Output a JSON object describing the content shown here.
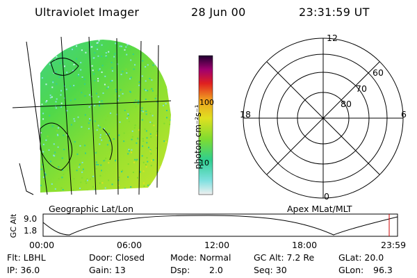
{
  "header": {
    "instrument": "Ultraviolet Imager",
    "date": "28 Jun 00",
    "time": "23:31:59 UT"
  },
  "colorbar": {
    "label": "photon cm⁻²s⁻¹",
    "tick_100": "100",
    "tick_10": "10"
  },
  "map_labels": {
    "left": "Geographic Lat/Lon",
    "right": "Apex MLat/MLT"
  },
  "polar": {
    "mlt_12": "12",
    "mlt_18": "18",
    "mlt_6": "6",
    "mlt_0": "0",
    "lat_60": "60",
    "lat_70": "70",
    "lat_80": "80"
  },
  "timeline": {
    "ylabel": "GC Alt",
    "ytick_top": "9.0",
    "ytick_bottom": "1.8",
    "xticks": [
      "00:00",
      "06:00",
      "12:00",
      "18:00",
      "23:59"
    ]
  },
  "footer": {
    "row1": {
      "flt": "Flt: LBHL",
      "door": "Door: Closed",
      "mode": "Mode: Normal",
      "gcalt": "GC Alt: 7.2 Re",
      "glat": "GLat: 20.0"
    },
    "row2": {
      "ip": "IP: 36.0",
      "gain": "Gain: 13",
      "dsp": "Dsp:",
      "dsp_val": "2.0",
      "seq": "Seq: 30",
      "glon": "GLon:",
      "glon_val": "96.3"
    }
  },
  "colors": {
    "marker": "#cc0000"
  }
}
